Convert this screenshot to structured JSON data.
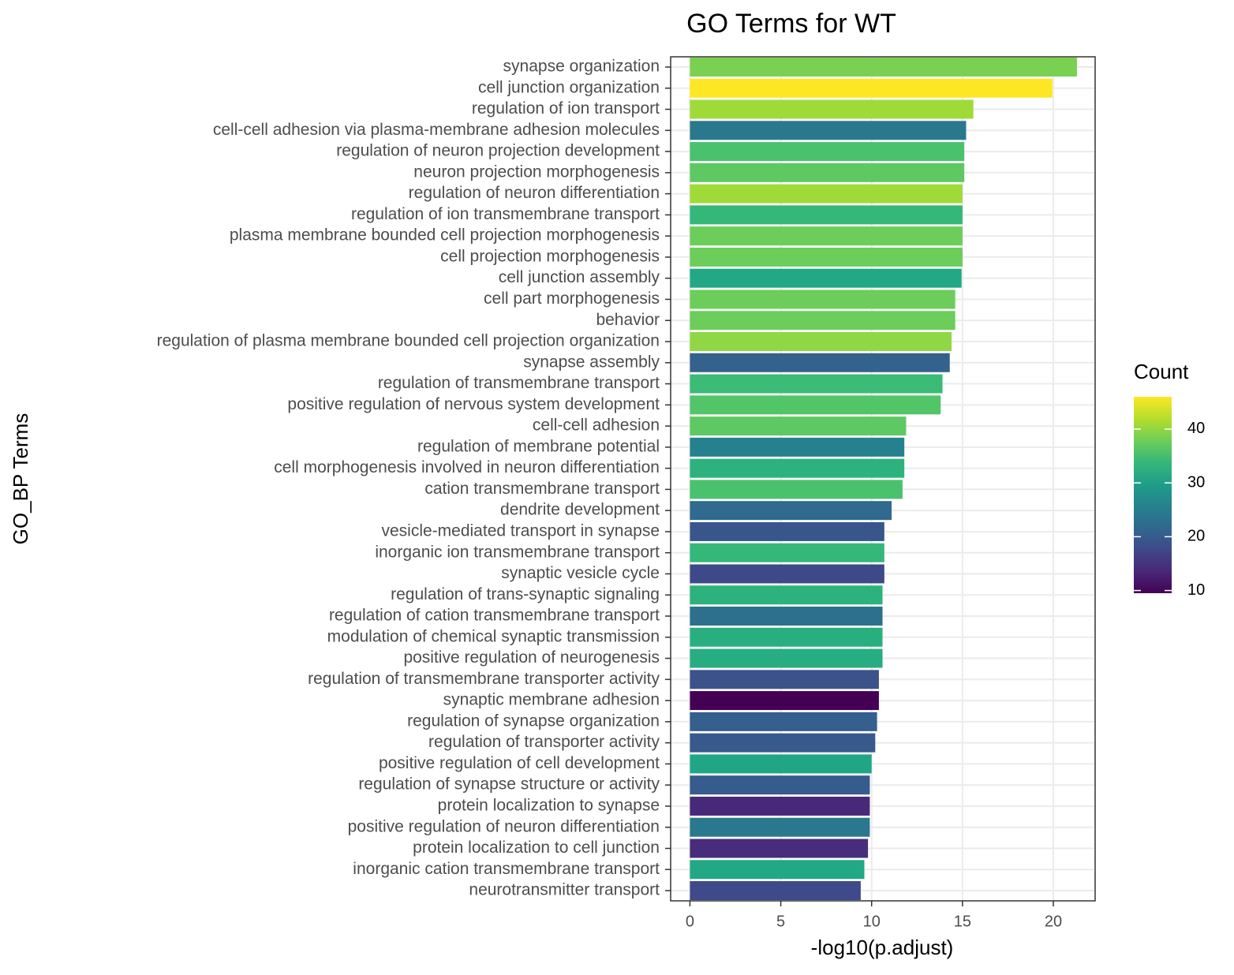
{
  "chart_data": {
    "type": "barh",
    "title": "GO Terms for WT",
    "x_label": "-log10(p.adjust)",
    "y_label": "GO_BP Terms",
    "categories": [
      "synapse organization",
      "cell junction organization",
      "regulation of ion transport",
      "cell-cell adhesion via plasma-membrane adhesion molecules",
      "regulation of neuron projection development",
      "neuron projection morphogenesis",
      "regulation of neuron differentiation",
      "regulation of ion transmembrane transport",
      "plasma membrane bounded cell projection morphogenesis",
      "cell projection morphogenesis",
      "cell junction assembly",
      "cell part morphogenesis",
      "behavior",
      "regulation of plasma membrane bounded cell projection organization",
      "synapse assembly",
      "regulation of transmembrane transport",
      "positive regulation of nervous system development",
      "cell-cell adhesion",
      "regulation of membrane potential",
      "cell morphogenesis involved in neuron differentiation",
      "cation transmembrane transport",
      "dendrite development",
      "vesicle-mediated transport in synapse",
      "inorganic ion transmembrane transport",
      "synaptic vesicle cycle",
      "regulation of trans-synaptic signaling",
      "regulation of cation transmembrane transport",
      "modulation of chemical synaptic transmission",
      "positive regulation of neurogenesis",
      "regulation of transmembrane transporter activity",
      "synaptic membrane adhesion",
      "regulation of synapse organization",
      "regulation of transporter activity",
      "positive regulation of cell development",
      "regulation of synapse structure or activity",
      "protein localization to synapse",
      "positive regulation of neuron differentiation",
      "protein localization to cell junction",
      "inorganic cation transmembrane transport",
      "neurotransmitter transport"
    ],
    "values": [
      21.3,
      19.95,
      15.6,
      15.2,
      15.1,
      15.1,
      15.0,
      15.0,
      15.0,
      15.0,
      14.95,
      14.6,
      14.6,
      14.4,
      14.3,
      13.9,
      13.8,
      11.9,
      11.8,
      11.8,
      11.7,
      11.1,
      10.7,
      10.7,
      10.7,
      10.6,
      10.6,
      10.6,
      10.6,
      10.4,
      10.4,
      10.3,
      10.2,
      10.0,
      9.9,
      9.9,
      9.9,
      9.8,
      9.6,
      9.4
    ],
    "colors": [
      "#7ad151",
      "#fde725",
      "#a0da39",
      "#2a788e",
      "#4ac16d",
      "#5ec962",
      "#a0da39",
      "#35b779",
      "#6ccd5a",
      "#6ccd5a",
      "#22a884",
      "#6ccd5a",
      "#6ccd5a",
      "#8fd744",
      "#33638d",
      "#3bbb75",
      "#52c569",
      "#5ec962",
      "#26818e",
      "#2db27d",
      "#4ac16d",
      "#306a8e",
      "#39568c",
      "#35b779",
      "#3e4989",
      "#2db27d",
      "#2d708e",
      "#29af7f",
      "#27ad81",
      "#3b528b",
      "#440154",
      "#355f8d",
      "#38598c",
      "#21a685",
      "#365c8d",
      "#482878",
      "#2a788e",
      "#472d7b",
      "#22a884",
      "#3e4a89"
    ],
    "xlim": [
      -1.06,
      22.3
    ],
    "xticks": [
      0,
      5,
      10,
      15,
      20
    ],
    "grid": true,
    "legend": {
      "title": "Count",
      "position": "right",
      "lim": [
        9.5,
        46
      ],
      "ticks": [
        10,
        20,
        30,
        40
      ],
      "colorscale": [
        "#440154",
        "#482878",
        "#3e4989",
        "#31688e",
        "#26828e",
        "#1f9e89",
        "#35b779",
        "#6ece58",
        "#b5de2b",
        "#fde725"
      ]
    }
  }
}
